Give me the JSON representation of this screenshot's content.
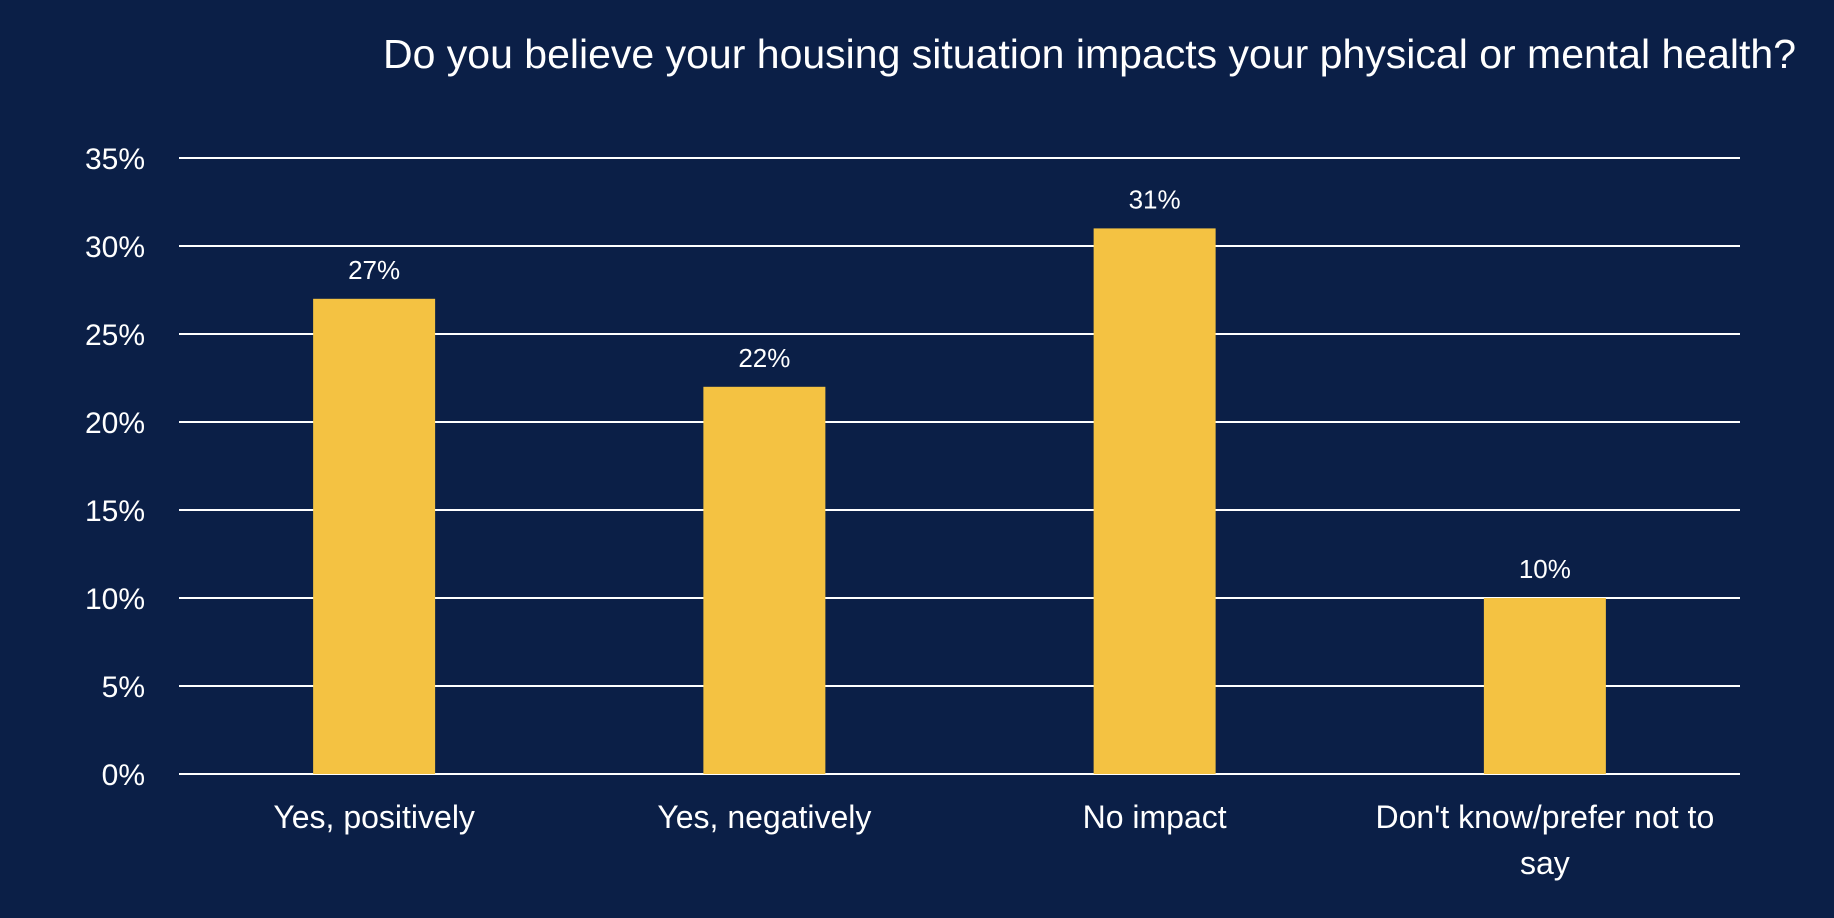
{
  "chart_data": {
    "type": "bar",
    "title": "Do you believe your housing situation impacts your physical or mental health?",
    "categories": [
      "Yes, positively",
      "Yes, negatively",
      "No impact",
      "Don't know/prefer not to say"
    ],
    "category_lines": [
      [
        "Yes, positively"
      ],
      [
        "Yes, negatively"
      ],
      [
        "No impact"
      ],
      [
        "Don't know/prefer not to",
        "say"
      ]
    ],
    "values": [
      27,
      22,
      31,
      10
    ],
    "data_labels": [
      "27%",
      "22%",
      "31%",
      "10%"
    ],
    "xlabel": "",
    "ylabel": "",
    "ylim": [
      0,
      35
    ],
    "yticks": [
      0,
      5,
      10,
      15,
      20,
      25,
      30,
      35
    ],
    "ytick_labels": [
      "0%",
      "5%",
      "10%",
      "15%",
      "20%",
      "25%",
      "30%",
      "35%"
    ],
    "grid": true,
    "legend": "none",
    "colors": {
      "background": "#0b1f47",
      "bar": "#f4c242",
      "grid": "#ffffff",
      "text": "#ffffff"
    }
  }
}
